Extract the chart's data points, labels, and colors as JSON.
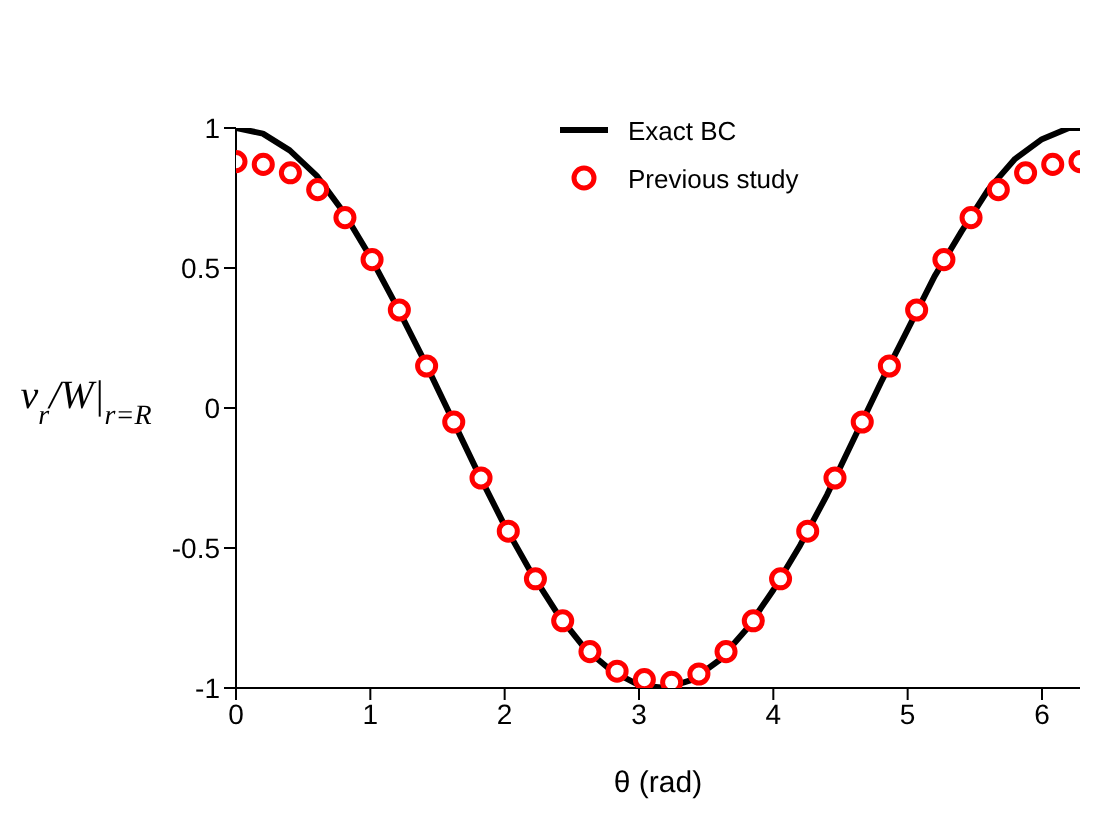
{
  "chart_data": {
    "type": "line",
    "xlabel": "θ (rad)",
    "ylabel": "v$_{r}$/W|$_{r=R}$",
    "xlim": [
      0,
      6.283
    ],
    "ylim": [
      -1,
      1
    ],
    "xticks": [
      0,
      1,
      2,
      3,
      4,
      5,
      6
    ],
    "yticks": [
      -1,
      -0.5,
      0,
      0.5,
      1
    ],
    "legend": "top",
    "grid": false,
    "series": [
      {
        "name": "Exact BC",
        "color": "#000000",
        "marker": "none",
        "line_style": "solid",
        "x": [
          0,
          0.2,
          0.4,
          0.6,
          0.8,
          1.0,
          1.2,
          1.4,
          1.6,
          1.8,
          2.0,
          2.2,
          2.4,
          2.6,
          2.8,
          3.0,
          3.2,
          3.4,
          3.6,
          3.8,
          4.0,
          4.2,
          4.4,
          4.6,
          4.8,
          5.0,
          5.2,
          5.4,
          5.6,
          5.8,
          6.0,
          6.2,
          6.283
        ],
        "values": [
          1,
          0.98,
          0.92,
          0.83,
          0.7,
          0.54,
          0.36,
          0.17,
          -0.03,
          -0.23,
          -0.42,
          -0.59,
          -0.74,
          -0.86,
          -0.94,
          -0.99,
          -1,
          -0.97,
          -0.9,
          -0.79,
          -0.65,
          -0.49,
          -0.31,
          -0.11,
          0.09,
          0.28,
          0.47,
          0.63,
          0.78,
          0.89,
          0.96,
          1,
          1
        ]
      },
      {
        "name": "Previous study",
        "type": "scatter",
        "color": "#ff0000",
        "marker": "circle",
        "x": [
          0,
          0.203,
          0.405,
          0.608,
          0.811,
          1.013,
          1.216,
          1.419,
          1.621,
          1.824,
          2.027,
          2.229,
          2.432,
          2.635,
          2.837,
          3.04,
          3.243,
          3.446,
          3.648,
          3.851,
          4.054,
          4.256,
          4.459,
          4.662,
          4.864,
          5.067,
          5.27,
          5.472,
          5.675,
          5.878,
          6.08,
          6.283
        ],
        "values": [
          0.88,
          0.87,
          0.84,
          0.78,
          0.68,
          0.53,
          0.35,
          0.15,
          -0.05,
          -0.25,
          -0.44,
          -0.61,
          -0.76,
          -0.87,
          -0.94,
          -0.97,
          -0.98,
          -0.95,
          -0.87,
          -0.76,
          -0.61,
          -0.44,
          -0.25,
          -0.05,
          0.15,
          0.35,
          0.53,
          0.68,
          0.78,
          0.84,
          0.87,
          0.88
        ]
      }
    ]
  }
}
